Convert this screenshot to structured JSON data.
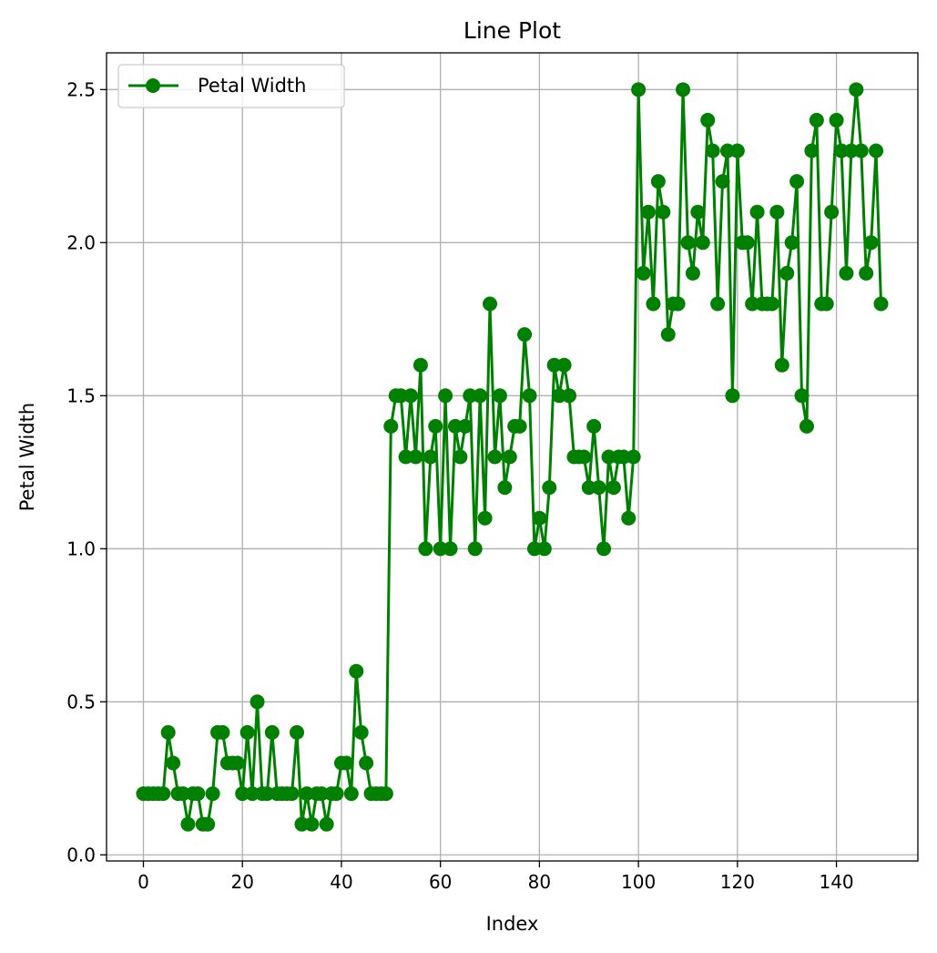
{
  "chart_data": {
    "type": "line",
    "title": "Line Plot",
    "xlabel": "Index",
    "ylabel": "Petal Width",
    "xlim": [
      -7.45,
      156.45
    ],
    "ylim": [
      -0.02,
      2.62
    ],
    "xticks": [
      0,
      20,
      40,
      60,
      80,
      100,
      120,
      140
    ],
    "yticks": [
      "0.0",
      "0.5",
      "1.0",
      "1.5",
      "2.0",
      "2.5"
    ],
    "grid": true,
    "legend_position": "top-left",
    "series": [
      {
        "name": "Petal Width",
        "color": "#008000",
        "marker": "circle",
        "values": [
          0.2,
          0.2,
          0.2,
          0.2,
          0.2,
          0.4,
          0.3,
          0.2,
          0.2,
          0.1,
          0.2,
          0.2,
          0.1,
          0.1,
          0.2,
          0.4,
          0.4,
          0.3,
          0.3,
          0.3,
          0.2,
          0.4,
          0.2,
          0.5,
          0.2,
          0.2,
          0.4,
          0.2,
          0.2,
          0.2,
          0.2,
          0.4,
          0.1,
          0.2,
          0.1,
          0.2,
          0.2,
          0.1,
          0.2,
          0.2,
          0.3,
          0.3,
          0.2,
          0.6,
          0.4,
          0.3,
          0.2,
          0.2,
          0.2,
          0.2,
          1.4,
          1.5,
          1.5,
          1.3,
          1.5,
          1.3,
          1.6,
          1.0,
          1.3,
          1.4,
          1.0,
          1.5,
          1.0,
          1.4,
          1.3,
          1.4,
          1.5,
          1.0,
          1.5,
          1.1,
          1.8,
          1.3,
          1.5,
          1.2,
          1.3,
          1.4,
          1.4,
          1.7,
          1.5,
          1.0,
          1.1,
          1.0,
          1.2,
          1.6,
          1.5,
          1.6,
          1.5,
          1.3,
          1.3,
          1.3,
          1.2,
          1.4,
          1.2,
          1.0,
          1.3,
          1.2,
          1.3,
          1.3,
          1.1,
          1.3,
          2.5,
          1.9,
          2.1,
          1.8,
          2.2,
          2.1,
          1.7,
          1.8,
          1.8,
          2.5,
          2.0,
          1.9,
          2.1,
          2.0,
          2.4,
          2.3,
          1.8,
          2.2,
          2.3,
          1.5,
          2.3,
          2.0,
          2.0,
          1.8,
          2.1,
          1.8,
          1.8,
          1.8,
          2.1,
          1.6,
          1.9,
          2.0,
          2.2,
          1.5,
          1.4,
          2.3,
          2.4,
          1.8,
          1.8,
          2.1,
          2.4,
          2.3,
          1.9,
          2.3,
          2.5,
          2.3,
          1.9,
          2.0,
          2.3,
          1.8
        ]
      }
    ]
  }
}
